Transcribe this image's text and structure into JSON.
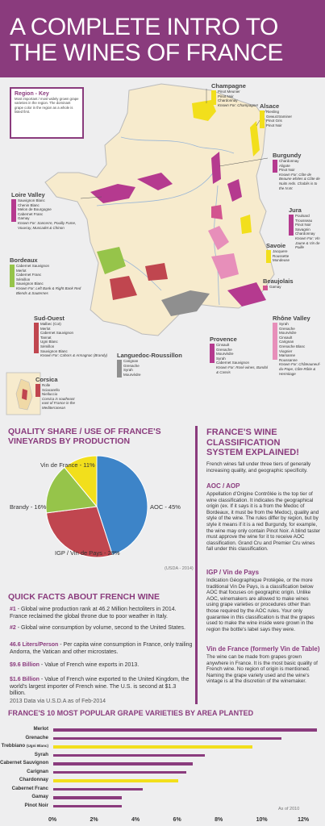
{
  "header": {
    "line1": "A COMPLETE INTRO TO",
    "line2": "THE WINES OF FRANCE"
  },
  "colors": {
    "purple": "#8a3b7d",
    "yellow": "#f2df1c",
    "land": "#f7ebcd",
    "pie_blue": "#3d84c8",
    "pie_red": "#c0464f",
    "pie_green": "#96c44a"
  },
  "key": {
    "title": "Region - Key",
    "desc": "Most important / most widely grown grape varieties in the region. The dominant grape color in the region as a whole is listed first."
  },
  "regions": {
    "champagne": {
      "name": "Champagne",
      "grapes": [
        "Pinot Meunier",
        "Pinot Noir",
        "Chardonnay"
      ],
      "known": "Known For: Champagne!"
    },
    "alsace": {
      "name": "Alsace",
      "grapes": [
        "Riesling",
        "Gewurztraminer",
        "Pinot Gris",
        "Pinot Noir"
      ],
      "known": ""
    },
    "burgundy": {
      "name": "Burgundy",
      "grapes": [
        "Chardonnay",
        "Aligote",
        "Pinot Noir"
      ],
      "known": "Known For: Côte de Beaune whites & Côte de Nuits reds. Chablis is to the N.W."
    },
    "jura": {
      "name": "Jura",
      "grapes": [
        "Poulsard",
        "Trousseau",
        "Pinot Noir",
        "Savagnin",
        "Chardonnay"
      ],
      "known": "Known For: Vin Jaune & Vin de Paille"
    },
    "savoie": {
      "name": "Savoie",
      "grapes": [
        "Jacquere",
        "Roussette",
        "Mondeuse"
      ],
      "known": ""
    },
    "beaujolais": {
      "name": "Beaujolais",
      "grapes": [
        "Gamay"
      ],
      "known": ""
    },
    "loire": {
      "name": "Loire Valley",
      "grapes": [
        "Sauvignon Blanc",
        "Chenin Blanc",
        "Melon de Bourgogne",
        "Cabernet Franc",
        "Gamay"
      ],
      "known": "Known For: Sancerre, Pouilly Fume, Vouvray, Muscadet & Chinon"
    },
    "bordeaux": {
      "name": "Bordeaux",
      "grapes": [
        "Cabernet Sauvignon",
        "Merlot",
        "Cabernet Franc",
        "Sémillon",
        "Sauvignon Blanc"
      ],
      "known": "Known For: Left Bank & Right Bank Red Blends & Sauternes"
    },
    "sudouest": {
      "name": "Sud-Ouest",
      "grapes": [
        "Malbec (Cot)",
        "Merlot",
        "Cabernet Sauvignon",
        "Tannat",
        "Ugni Blanc",
        "Sémillon",
        "Sauvignon Blanc"
      ],
      "known": "Known For: Cahors & Armagnac (Brandy)"
    },
    "languedoc": {
      "name": "Languedoc-Roussillon",
      "grapes": [
        "Carignan",
        "Grenache",
        "Syrah",
        "Mourvèdre"
      ],
      "known": ""
    },
    "provence": {
      "name": "Provence",
      "grapes": [
        "Cinsault",
        "Grenache",
        "Mourvèdre",
        "Syrah",
        "Cabernet Sauvignon"
      ],
      "known": "Known For: Rosé wines, Bandol & Cassis"
    },
    "rhone": {
      "name": "Rhône Valley",
      "grapes": [
        "Syrah",
        "Grenache",
        "Mourvèdre",
        "Cinsault",
        "Carignan",
        "Grenache Blanc",
        "Viognier",
        "Marsanne",
        "Roussanne"
      ],
      "known": "Known For: Châteauneuf-du-Pape, Côte-Rôtie & Hermitage"
    },
    "corsica": {
      "name": "Corsica",
      "grapes": [
        "Rolle",
        "Sciacarello",
        "Nielluccio"
      ],
      "known": "Corsica is southeast east of France in the Mediterranean"
    }
  },
  "pie": {
    "title1": "QUALITY SHARE / USE OF FRANCE'S",
    "title2": "VINEYARDS BY PRODUCTION",
    "source": "(USDA - 2014)"
  },
  "chart_data": [
    {
      "type": "pie",
      "title": "QUALITY SHARE / USE OF FRANCE'S VINEYARDS BY PRODUCTION",
      "categories": [
        "AOC",
        "IGP / Vin de Pays",
        "Brandy",
        "Vin de France"
      ],
      "values": [
        45,
        28,
        16,
        11
      ],
      "labels": [
        "AOC - 45%",
        "IGP / Vin de Pays - 28%",
        "Brandy - 16%",
        "Vin de France - 11%"
      ]
    },
    {
      "type": "bar",
      "orientation": "horizontal",
      "title": "FRANCE'S 10 MOST POPULAR GRAPE VARIETIES BY AREA PLANTED",
      "categories": [
        "Merlot",
        "Grenache",
        "Trebbiano (Ugni Blanc)",
        "Syrah",
        "Cabernet Sauvignon",
        "Carignan",
        "Chardonnay",
        "Cabernet Franc",
        "Gamay",
        "Pinot Noir"
      ],
      "values": [
        12.7,
        11,
        9.6,
        7.3,
        6.7,
        6.4,
        6,
        4.3,
        3.3,
        3.3
      ],
      "xticks": [
        "0%",
        "2%",
        "4%",
        "6%",
        "8%",
        "10%",
        "12%"
      ],
      "xlim": [
        0,
        12.5
      ],
      "note": "As of 2010"
    }
  ],
  "facts": {
    "title": "QUICK FACTS ABOUT FRENCH WINE",
    "items": [
      {
        "hl": "#1",
        "text": " - Global wine production rank at 46.2 Million hectoliters in 2014. France reclaimed the global throne due to poor weather in Italy."
      },
      {
        "hl": "#2",
        "text": " - Global wine consumption by volume, second to the United States."
      },
      {
        "hl": "46.6 Liters/Person",
        "text": " - Per capita wine consumption in France, only trailing Andorra, the Vatican and other microstates."
      },
      {
        "hl": "$9.6 Billion",
        "text": " - Value of French wine exports in 2013."
      },
      {
        "hl": "$1.6 Billion",
        "text": " - Value of French wine exported to the United Kingdom, the world's largest importer of French wine. The U.S. is second at $1.3 billion."
      }
    ],
    "source": "2013 Data via U.S.D.A as of Feb-2014"
  },
  "classification": {
    "title1": "FRANCE'S WINE",
    "title2": "CLASSIFICATION",
    "title3": "SYSTEM EXPLAINED!",
    "intro": "French wines fall under three tiers of generally increasing quality, and geographic specificity.",
    "aoc_title": "AOC / AOP",
    "aoc_text": "Appellation d'Origine Contrôlée is the top tier of wine classification. It indicates the geographical origin (ex. If it says it is a from the Medoc of Bordeaux, it must be from the Medoc), quality and style of the wine. The rules differ by region, but by style it means if it is a red Burgundy, for example, the wine may only contain Pinot Noir. A blind taster must approve the wine for it to receive AOC classification. Grand Cru and Premier Cru wines fall under this classification.",
    "igp_title": "IGP / Vin de Pays",
    "igp_text": "Indication Géographique Protégée, or the more traditional Vin De Pays, is a classification below AOC that focuses on geographic origin. Unlike AOC, winemakers are allowed to make wines using grape varieties or procedures other than those required by the AOC rules. Your only guarantee in this classification is that the grapes used to make the wine inside were grown in the region the bottle's label says they were.",
    "vdf_title": "Vin de France (formerly Vin de Table)",
    "vdf_text": "The wine can be made from grapes grown anywhere in France. It is the most basic quality of French wine. No region of origin is mentioned. Naming the grape variety used and the wine's vintage is at the discretion of the winemaker."
  },
  "grapes_chart": {
    "title": "FRANCE'S 10 MOST POPULAR GRAPE VARIETIES BY AREA PLANTED",
    "note": "As of 2010",
    "label_trebbiano_main": "Trebbiano",
    "label_trebbiano_sub": "(Ugni Blanc)"
  }
}
